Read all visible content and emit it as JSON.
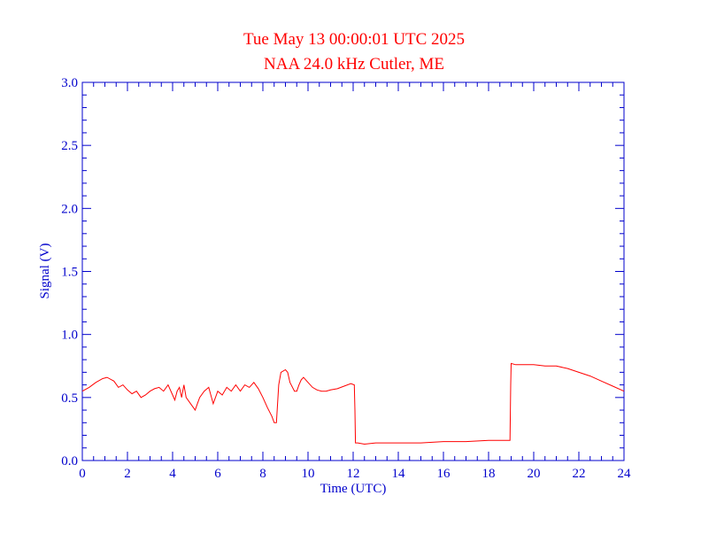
{
  "header": {
    "title_line1": "Tue May 13 00:00:01 UTC 2025",
    "title_line2": "NAA 24.0 kHz Cutler, ME"
  },
  "colors": {
    "title": "#ff0000",
    "axes": "#0000cc",
    "series": "#ff0000",
    "background": "#ffffff"
  },
  "chart_data": {
    "type": "line",
    "title": "Tue May 13 00:00:01 UTC 2025",
    "subtitle": "NAA 24.0 kHz Cutler, ME",
    "xlabel": "Time (UTC)",
    "ylabel": "Signal (V)",
    "xlim": [
      0,
      24
    ],
    "ylim": [
      0,
      3.0
    ],
    "xticks": [
      0,
      2,
      4,
      6,
      8,
      10,
      12,
      14,
      16,
      18,
      20,
      22,
      24
    ],
    "xtick_labels": [
      "0",
      "2",
      "4",
      "6",
      "8",
      "10",
      "12",
      "14",
      "16",
      "18",
      "20",
      "22",
      "24"
    ],
    "yticks": [
      0,
      0.5,
      1.0,
      1.5,
      2.0,
      2.5,
      3.0
    ],
    "ytick_labels": [
      "0.0",
      "0.5",
      "1.0",
      "1.5",
      "2.0",
      "2.5",
      "3.0"
    ],
    "grid": false,
    "series": [
      {
        "x": [
          0,
          0.3,
          0.6,
          0.9,
          1.1,
          1.4,
          1.6,
          1.8,
          2.0,
          2.2,
          2.4,
          2.6,
          2.8,
          3.0,
          3.2,
          3.4,
          3.6,
          3.8,
          4.0,
          4.1,
          4.2,
          4.3,
          4.4,
          4.5,
          4.6,
          4.8,
          5.0,
          5.1,
          5.2,
          5.4,
          5.6,
          5.8,
          6.0,
          6.2,
          6.4,
          6.6,
          6.8,
          7.0,
          7.2,
          7.4,
          7.6,
          7.8,
          8.0,
          8.2,
          8.4,
          8.5,
          8.6,
          8.7,
          8.8,
          9.0,
          9.1,
          9.2,
          9.4,
          9.5,
          9.6,
          9.7,
          9.8,
          10.0,
          10.2,
          10.4,
          10.6,
          10.8,
          11.0,
          11.3,
          11.6,
          11.9,
          12.05,
          12.08,
          12.1,
          12.2,
          12.5,
          13.0,
          14.0,
          15.0,
          16.0,
          17.0,
          18.0,
          18.5,
          18.8,
          18.95,
          18.98,
          19.0,
          19.2,
          19.5,
          20.0,
          20.5,
          21.0,
          21.5,
          22.0,
          22.5,
          23.0,
          23.5,
          24.0
        ],
        "y": [
          0.55,
          0.58,
          0.62,
          0.65,
          0.66,
          0.63,
          0.58,
          0.6,
          0.56,
          0.53,
          0.55,
          0.5,
          0.52,
          0.55,
          0.57,
          0.58,
          0.55,
          0.6,
          0.52,
          0.48,
          0.55,
          0.58,
          0.5,
          0.6,
          0.5,
          0.45,
          0.4,
          0.45,
          0.5,
          0.55,
          0.58,
          0.45,
          0.55,
          0.52,
          0.58,
          0.55,
          0.6,
          0.55,
          0.6,
          0.58,
          0.62,
          0.57,
          0.5,
          0.42,
          0.35,
          0.3,
          0.3,
          0.6,
          0.7,
          0.72,
          0.7,
          0.62,
          0.55,
          0.55,
          0.6,
          0.64,
          0.66,
          0.62,
          0.58,
          0.56,
          0.55,
          0.55,
          0.56,
          0.57,
          0.59,
          0.61,
          0.6,
          0.4,
          0.14,
          0.14,
          0.13,
          0.14,
          0.14,
          0.14,
          0.15,
          0.15,
          0.16,
          0.16,
          0.16,
          0.16,
          0.6,
          0.77,
          0.76,
          0.76,
          0.76,
          0.75,
          0.75,
          0.73,
          0.7,
          0.67,
          0.63,
          0.59,
          0.55
        ]
      }
    ]
  }
}
